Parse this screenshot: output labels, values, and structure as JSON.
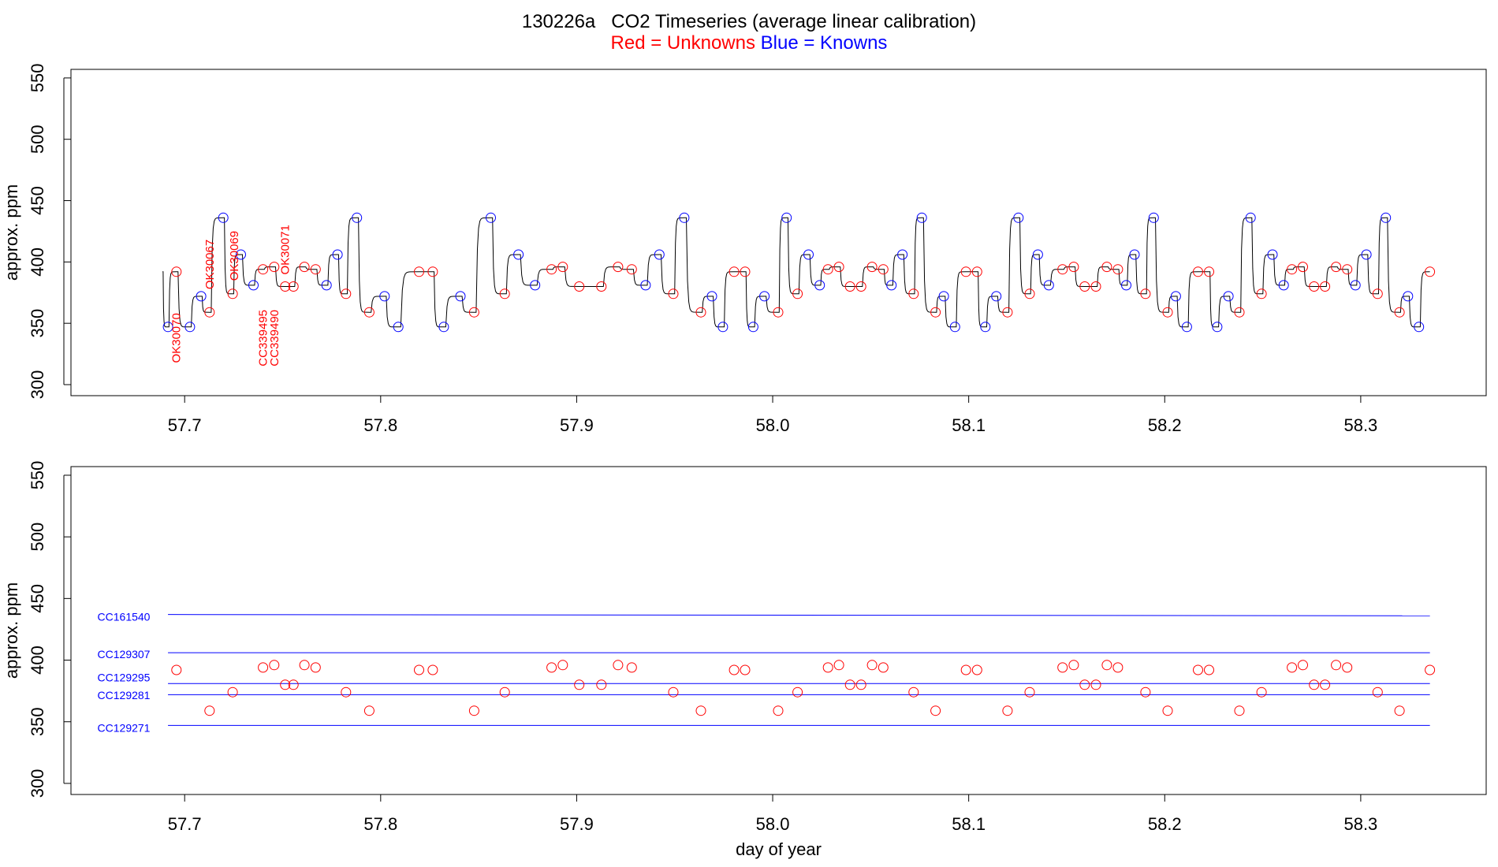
{
  "title": "130226a   CO2 Timeseries (average linear calibration)",
  "subtitle": {
    "red": "Red = Unknowns",
    "blue": "Blue = Knowns"
  },
  "colors": {
    "unknown": "#ff0000",
    "known": "#0000ff",
    "trace": "#000000"
  },
  "chart_data": [
    {
      "type": "line",
      "panel": "top",
      "xlabel": "",
      "ylabel": "approx. ppm",
      "xlim": [
        57.642,
        58.364
      ],
      "ylim": [
        291,
        557
      ],
      "xticks": [
        57.7,
        57.8,
        57.9,
        58.0,
        58.1,
        58.2,
        58.3
      ],
      "xtick_labels": [
        "57.7",
        "57.8",
        "57.9",
        "58.0",
        "58.1",
        "58.2",
        "58.3"
      ],
      "yticks": [
        300,
        350,
        400,
        450,
        500,
        550
      ],
      "ytick_labels": [
        "300",
        "350",
        "400",
        "450",
        "500",
        "550"
      ],
      "trace_start": {
        "x": 57.6887,
        "y": 392
      },
      "series": [
        {
          "name": "Red = Unknowns",
          "values": [
            [
              57.6958,
              392
            ],
            [
              57.7127,
              359
            ],
            [
              57.7245,
              374
            ],
            [
              57.74,
              394
            ],
            [
              57.7457,
              396
            ],
            [
              57.7513,
              380
            ],
            [
              57.7555,
              380
            ],
            [
              57.7611,
              396
            ],
            [
              57.7668,
              394
            ],
            [
              57.7823,
              374
            ],
            [
              57.7942,
              359
            ],
            [
              57.8196,
              392
            ],
            [
              57.8266,
              392
            ],
            [
              57.8477,
              359
            ],
            [
              57.8633,
              374
            ],
            [
              57.8872,
              394
            ],
            [
              57.8929,
              396
            ],
            [
              57.9013,
              380
            ],
            [
              57.9126,
              380
            ],
            [
              57.9211,
              396
            ],
            [
              57.9281,
              394
            ],
            [
              57.9493,
              374
            ],
            [
              57.9634,
              359
            ],
            [
              57.9803,
              392
            ],
            [
              57.9859,
              392
            ],
            [
              58.0028,
              359
            ],
            [
              58.0127,
              374
            ],
            [
              58.0282,
              394
            ],
            [
              58.0338,
              396
            ],
            [
              58.0395,
              380
            ],
            [
              58.0451,
              380
            ],
            [
              58.0507,
              396
            ],
            [
              58.0564,
              394
            ],
            [
              58.0719,
              374
            ],
            [
              58.0831,
              359
            ],
            [
              58.0986,
              392
            ],
            [
              58.1043,
              392
            ],
            [
              58.1198,
              359
            ],
            [
              58.1311,
              374
            ],
            [
              58.1479,
              394
            ],
            [
              58.1536,
              396
            ],
            [
              58.1592,
              380
            ],
            [
              58.1649,
              380
            ],
            [
              58.1705,
              396
            ],
            [
              58.1761,
              394
            ],
            [
              58.1902,
              374
            ],
            [
              58.2015,
              359
            ],
            [
              58.217,
              392
            ],
            [
              58.2226,
              392
            ],
            [
              58.2381,
              359
            ],
            [
              58.2494,
              374
            ],
            [
              58.2649,
              394
            ],
            [
              58.2705,
              396
            ],
            [
              58.2762,
              380
            ],
            [
              58.2818,
              380
            ],
            [
              58.2874,
              396
            ],
            [
              58.2931,
              394
            ],
            [
              58.3086,
              374
            ],
            [
              58.3198,
              359
            ],
            [
              58.3353,
              392
            ]
          ]
        },
        {
          "name": "Blue = Knowns",
          "values": [
            [
              57.6915,
              347
            ],
            [
              57.7027,
              347
            ],
            [
              57.7084,
              372
            ],
            [
              57.7197,
              436
            ],
            [
              57.7287,
              406
            ],
            [
              57.7351,
              381
            ],
            [
              57.7724,
              381
            ],
            [
              57.778,
              406
            ],
            [
              57.7879,
              436
            ],
            [
              57.802,
              372
            ],
            [
              57.809,
              347
            ],
            [
              57.8322,
              347
            ],
            [
              57.8407,
              372
            ],
            [
              57.8562,
              436
            ],
            [
              57.8703,
              406
            ],
            [
              57.8788,
              381
            ],
            [
              57.9352,
              381
            ],
            [
              57.9422,
              406
            ],
            [
              57.9549,
              436
            ],
            [
              57.969,
              372
            ],
            [
              57.9746,
              347
            ],
            [
              57.9901,
              347
            ],
            [
              57.9958,
              372
            ],
            [
              58.0071,
              436
            ],
            [
              58.0183,
              406
            ],
            [
              58.024,
              381
            ],
            [
              58.0606,
              381
            ],
            [
              58.0662,
              406
            ],
            [
              58.0761,
              436
            ],
            [
              58.0873,
              372
            ],
            [
              58.093,
              347
            ],
            [
              58.1085,
              347
            ],
            [
              58.1141,
              372
            ],
            [
              58.1254,
              436
            ],
            [
              58.1353,
              406
            ],
            [
              58.1409,
              381
            ],
            [
              58.1804,
              381
            ],
            [
              58.1846,
              406
            ],
            [
              58.1944,
              436
            ],
            [
              58.2057,
              372
            ],
            [
              58.2113,
              347
            ],
            [
              58.2268,
              347
            ],
            [
              58.2325,
              372
            ],
            [
              58.2438,
              436
            ],
            [
              58.255,
              406
            ],
            [
              58.2607,
              381
            ],
            [
              58.2973,
              381
            ],
            [
              58.3029,
              406
            ],
            [
              58.3128,
              436
            ],
            [
              58.3241,
              372
            ],
            [
              58.3297,
              347
            ]
          ]
        }
      ],
      "annotations": [
        {
          "text": "OK30070",
          "x": 57.6958,
          "y": 338
        },
        {
          "text": "OK30067",
          "x": 57.7127,
          "y": 398
        },
        {
          "text": "OK30069",
          "x": 57.7253,
          "y": 405
        },
        {
          "text": "CC339495",
          "x": 57.74,
          "y": 338
        },
        {
          "text": "CC339490",
          "x": 57.7457,
          "y": 338
        },
        {
          "text": "OK30071",
          "x": 57.7513,
          "y": 410
        }
      ]
    },
    {
      "type": "scatter",
      "panel": "bottom",
      "xlabel": "day of year",
      "ylabel": "approx. ppm",
      "xlim": [
        57.642,
        58.364
      ],
      "ylim": [
        291,
        557
      ],
      "xticks": [
        57.7,
        57.8,
        57.9,
        58.0,
        58.1,
        58.2,
        58.3
      ],
      "xtick_labels": [
        "57.7",
        "57.8",
        "57.9",
        "58.0",
        "58.1",
        "58.2",
        "58.3"
      ],
      "yticks": [
        300,
        350,
        400,
        450,
        500,
        550
      ],
      "ytick_labels": [
        "300",
        "350",
        "400",
        "450",
        "500",
        "550"
      ],
      "reference_lines": [
        {
          "name": "CC161540",
          "x": [
            57.6915,
            58.3353
          ],
          "y": [
            437,
            436
          ]
        },
        {
          "name": "CC129307",
          "x": [
            57.6915,
            58.3353
          ],
          "y": [
            406,
            406
          ]
        },
        {
          "name": "CC129295",
          "x": [
            57.6915,
            58.3353
          ],
          "y": [
            381,
            381
          ]
        },
        {
          "name": "CC129281",
          "x": [
            57.6915,
            58.3353
          ],
          "y": [
            372,
            372
          ]
        },
        {
          "name": "CC129271",
          "x": [
            57.6915,
            58.3353
          ],
          "y": [
            347,
            347
          ]
        }
      ],
      "unknown_points": "same as top panel Red = Unknowns series"
    }
  ]
}
